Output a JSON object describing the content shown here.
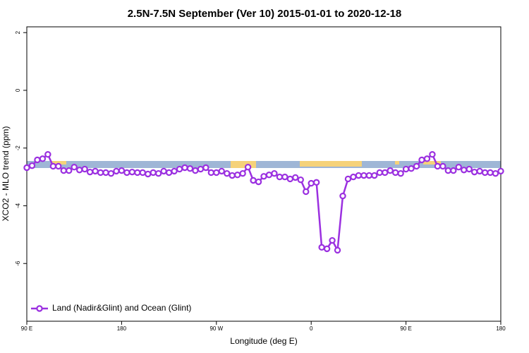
{
  "chart_data": {
    "type": "line",
    "title": "2.5N-7.5N September (Ver 10)   2015-01-01 to 2020-12-18",
    "x_label": "Longitude (deg E)",
    "y_label": "XCO2 - MLO trend (ppm)",
    "x": [
      90,
      95,
      100,
      105,
      110,
      115,
      120,
      125,
      130,
      135,
      140,
      145,
      150,
      155,
      160,
      165,
      170,
      175,
      180,
      185,
      190,
      195,
      200,
      205,
      210,
      215,
      220,
      225,
      230,
      235,
      240,
      245,
      250,
      255,
      260,
      265,
      270,
      275,
      280,
      285,
      290,
      295,
      300,
      305,
      310,
      315,
      320,
      325,
      330,
      335,
      340,
      345,
      350,
      355,
      360,
      365,
      370,
      375,
      380,
      385,
      390,
      395,
      400,
      405,
      410,
      415,
      420,
      425,
      430,
      435,
      440,
      445,
      450,
      455,
      460,
      465,
      470,
      475,
      480,
      485,
      490,
      495,
      500,
      505,
      510,
      515,
      520,
      525,
      530,
      535,
      540
    ],
    "series": [
      {
        "name": "Land (Nadir&Glint) and Ocean (Glint)",
        "color": "#9b30e0",
        "values": [
          -2.68,
          -2.61,
          -2.41,
          -2.37,
          -2.22,
          -2.63,
          -2.63,
          -2.78,
          -2.78,
          -2.66,
          -2.76,
          -2.73,
          -2.83,
          -2.8,
          -2.85,
          -2.85,
          -2.88,
          -2.8,
          -2.78,
          -2.85,
          -2.83,
          -2.85,
          -2.85,
          -2.9,
          -2.85,
          -2.88,
          -2.8,
          -2.85,
          -2.8,
          -2.73,
          -2.68,
          -2.71,
          -2.78,
          -2.73,
          -2.68,
          -2.85,
          -2.85,
          -2.8,
          -2.88,
          -2.95,
          -2.93,
          -2.88,
          -2.66,
          -3.12,
          -3.17,
          -2.98,
          -2.93,
          -2.88,
          -3.0,
          -3.0,
          -3.07,
          -3.02,
          -3.1,
          -3.51,
          -3.22,
          -3.19,
          -5.44,
          -5.49,
          -5.2,
          -5.54,
          -3.66,
          -3.07,
          -3.0,
          -2.95,
          -2.95,
          -2.95,
          -2.95,
          -2.85,
          -2.85,
          -2.78,
          -2.85,
          -2.88,
          -2.73,
          -2.71,
          -2.63,
          -2.41,
          -2.37,
          -2.22,
          -2.63,
          -2.63,
          -2.78,
          -2.78,
          -2.66,
          -2.76,
          -2.73,
          -2.83,
          -2.8,
          -2.85,
          -2.85,
          -2.88,
          -2.8
        ]
      }
    ],
    "xlim": [
      90,
      540
    ],
    "xticks": [
      {
        "value": 90,
        "label": "90 E"
      },
      180,
      {
        "value": 270,
        "label": "90 W"
      },
      {
        "value": 360,
        "label": "0"
      },
      {
        "value": 450,
        "label": "90 E"
      },
      {
        "value": 540,
        "label": "180"
      }
    ],
    "ylim": [
      -8,
      2.2
    ],
    "yticks": [
      -6,
      -4,
      -2,
      0,
      2
    ],
    "legend": "bottom-left"
  }
}
